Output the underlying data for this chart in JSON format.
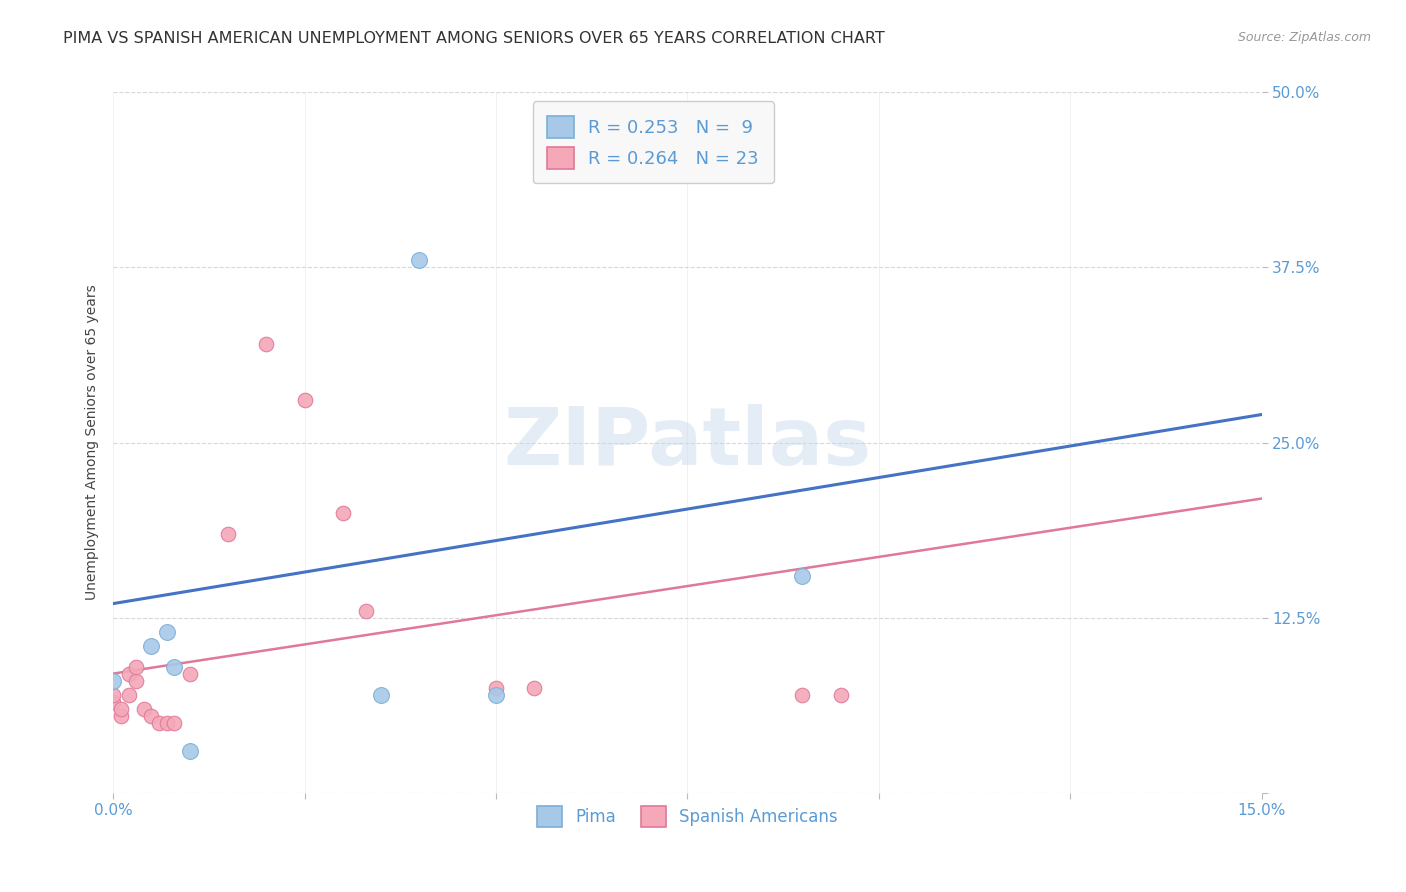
{
  "title": "PIMA VS SPANISH AMERICAN UNEMPLOYMENT AMONG SENIORS OVER 65 YEARS CORRELATION CHART",
  "source": "Source: ZipAtlas.com",
  "ylabel": "Unemployment Among Seniors over 65 years",
  "watermark": "ZIPatlas",
  "xlim": [
    0.0,
    0.15
  ],
  "ylim": [
    0.0,
    0.5
  ],
  "xticks": [
    0.0,
    0.025,
    0.05,
    0.075,
    0.1,
    0.125,
    0.15
  ],
  "yticks": [
    0.0,
    0.125,
    0.25,
    0.375,
    0.5
  ],
  "xticklabels": [
    "0.0%",
    "",
    "",
    "",
    "",
    "",
    "15.0%"
  ],
  "yticklabels": [
    "",
    "12.5%",
    "25.0%",
    "37.5%",
    "50.0%"
  ],
  "pima_color": "#a8c8e8",
  "pima_edge_color": "#7ab0d8",
  "spanish_color": "#f4a8b8",
  "spanish_edge_color": "#e07898",
  "line_blue": "#4472c4",
  "line_pink": "#e07898",
  "legend_R1": "0.253",
  "legend_N1": "9",
  "legend_R2": "0.264",
  "legend_N2": "23",
  "pima_points": [
    [
      0.0,
      0.08
    ],
    [
      0.005,
      0.105
    ],
    [
      0.007,
      0.115
    ],
    [
      0.008,
      0.09
    ],
    [
      0.035,
      0.07
    ],
    [
      0.04,
      0.38
    ],
    [
      0.05,
      0.07
    ],
    [
      0.09,
      0.155
    ],
    [
      0.01,
      0.03
    ]
  ],
  "spanish_points": [
    [
      0.0,
      0.065
    ],
    [
      0.0,
      0.07
    ],
    [
      0.001,
      0.055
    ],
    [
      0.001,
      0.06
    ],
    [
      0.002,
      0.07
    ],
    [
      0.002,
      0.085
    ],
    [
      0.003,
      0.08
    ],
    [
      0.003,
      0.09
    ],
    [
      0.004,
      0.06
    ],
    [
      0.005,
      0.055
    ],
    [
      0.006,
      0.05
    ],
    [
      0.007,
      0.05
    ],
    [
      0.008,
      0.05
    ],
    [
      0.01,
      0.085
    ],
    [
      0.015,
      0.185
    ],
    [
      0.02,
      0.32
    ],
    [
      0.025,
      0.28
    ],
    [
      0.03,
      0.2
    ],
    [
      0.033,
      0.13
    ],
    [
      0.05,
      0.075
    ],
    [
      0.055,
      0.075
    ],
    [
      0.09,
      0.07
    ],
    [
      0.095,
      0.07
    ]
  ],
  "blue_line_x0": 0.0,
  "blue_line_y0": 0.135,
  "blue_line_x1": 0.15,
  "blue_line_y1": 0.27,
  "pink_line_x0": 0.0,
  "pink_line_y0": 0.085,
  "pink_line_x1": 0.15,
  "pink_line_y1": 0.21,
  "pima_marker_size": 130,
  "spanish_marker_size": 110,
  "title_fontsize": 11.5,
  "axis_label_fontsize": 10,
  "tick_fontsize": 11,
  "legend_fontsize": 13,
  "background_color": "#ffffff",
  "grid_color": "#d8d8d8"
}
